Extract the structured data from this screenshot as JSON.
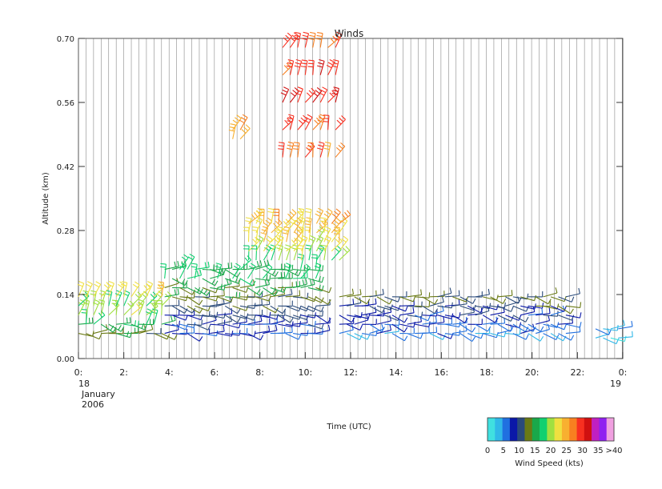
{
  "chart_data": {
    "type": "wind-barb time-height plot",
    "title": "Winds",
    "xlabel": "Time (UTC)",
    "ylabel": "Altitude (km)",
    "xlim": [
      0,
      24
    ],
    "ylim": [
      0,
      0.7
    ],
    "x_ticks": [
      {
        "value": 0,
        "label": "0:"
      },
      {
        "value": 2,
        "label": "2:"
      },
      {
        "value": 4,
        "label": "4:"
      },
      {
        "value": 6,
        "label": "6:"
      },
      {
        "value": 8,
        "label": "8:"
      },
      {
        "value": 10,
        "label": "10:"
      },
      {
        "value": 12,
        "label": "12:"
      },
      {
        "value": 14,
        "label": "14:"
      },
      {
        "value": 16,
        "label": "16:"
      },
      {
        "value": 18,
        "label": "18:"
      },
      {
        "value": 20,
        "label": "20:"
      },
      {
        "value": 22,
        "label": "22:"
      },
      {
        "value": 24,
        "label": "0:"
      }
    ],
    "x_date_labels": {
      "start_day": "18",
      "start_month": "January",
      "start_year": "2006",
      "end_day": "19"
    },
    "y_ticks": [
      0.0,
      0.14,
      0.28,
      0.42,
      0.56,
      0.7
    ],
    "y_tick_labels": [
      "0.00",
      "0.14",
      "0.28",
      "0.42",
      "0.56",
      "0.70"
    ],
    "grid": "vertical lines at each profile time",
    "profile_interval_h": 0.333,
    "colorbar": {
      "label": "Wind Speed (kts)",
      "tick_labels": [
        "0",
        "5",
        "10",
        "15",
        "20",
        "25",
        "30",
        "35",
        ">40"
      ],
      "colors": [
        "#40e0e0",
        "#30b8e8",
        "#2070e0",
        "#0a18a8",
        "#2a4a7a",
        "#6a7a14",
        "#1aa84a",
        "#10d070",
        "#a0e040",
        "#f0e040",
        "#f8b030",
        "#f88020",
        "#f83020",
        "#d01010",
        "#c020c0",
        "#9020f0",
        "#f0a0e0"
      ]
    },
    "series": [
      {
        "time_range": [
          0.0,
          3.8
        ],
        "altitudes": [
          0.055,
          0.075,
          0.095,
          0.115,
          0.135
        ],
        "speeds_kts": [
          14,
          18,
          22,
          20,
          24
        ]
      },
      {
        "time_range": [
          3.8,
          10.5
        ],
        "altitudes": [
          0.055,
          0.075,
          0.095,
          0.115,
          0.135,
          0.155,
          0.175,
          0.195
        ],
        "speeds_kts": [
          8,
          9,
          10,
          12,
          14,
          16,
          18,
          17
        ]
      },
      {
        "time_range": [
          7.5,
          11.5
        ],
        "altitudes": [
          0.215,
          0.235,
          0.255,
          0.275,
          0.295
        ],
        "speeds_kts": [
          21,
          23,
          24,
          25,
          26
        ]
      },
      {
        "time_range": [
          11.5,
          21.5
        ],
        "altitudes": [
          0.055,
          0.075,
          0.095,
          0.115,
          0.135
        ],
        "speeds_kts": [
          6,
          7,
          9,
          11,
          13
        ]
      },
      {
        "time_range": [
          22.8,
          23.9
        ],
        "altitudes": [
          0.045,
          0.065
        ],
        "speeds_kts": [
          3,
          5
        ]
      },
      {
        "time_range": [
          6.8,
          7.2
        ],
        "altitudes": [
          0.48,
          0.5
        ],
        "speeds_kts": [
          26,
          27
        ]
      },
      {
        "time_range": [
          9.0,
          11.5
        ],
        "altitudes": [
          0.44,
          0.5,
          0.56,
          0.62,
          0.68
        ],
        "speeds_kts": [
          29,
          31,
          33,
          31,
          30
        ]
      }
    ]
  }
}
